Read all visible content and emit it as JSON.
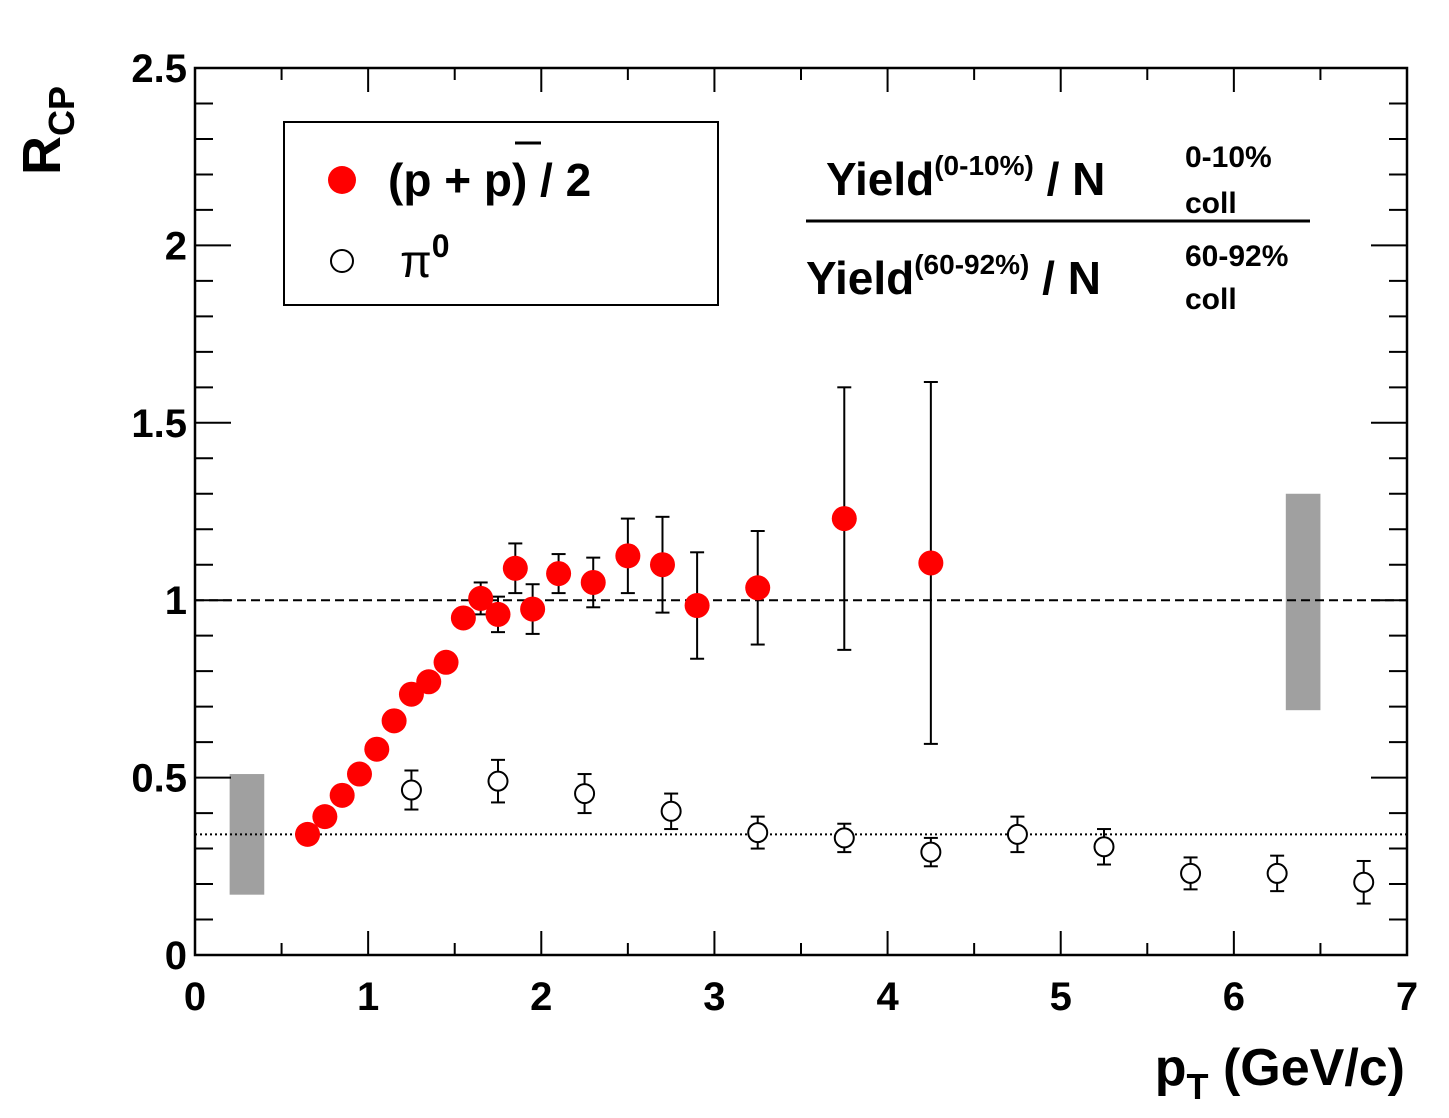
{
  "chart_data": {
    "type": "scatter",
    "xlabel": {
      "main": "p",
      "sub": "T",
      "unit": " (GeV/c)"
    },
    "ylabel": {
      "main": "R",
      "sub": "CP"
    },
    "xlim": [
      0,
      7
    ],
    "ylim": [
      0,
      2.5
    ],
    "x_ticks": [
      "0",
      "1",
      "2",
      "3",
      "4",
      "5",
      "6",
      "7"
    ],
    "y_ticks": [
      "0",
      "0.5",
      "1",
      "1.5",
      "2",
      "2.5"
    ],
    "grid": false,
    "legend_placement": "top-left",
    "legend": {
      "proton_label": {
        "open": "(p + ",
        "bar": "p",
        "close": ") / 2"
      },
      "pion_label": {
        "main": "π",
        "sup": "0"
      }
    },
    "formula": {
      "num": {
        "yield": "Yield",
        "cent": "(0-10%)",
        "slash": " / N",
        "sup": "0-10%",
        "sub": "coll"
      },
      "den": {
        "yield": "Yield",
        "cent": "(60-92%)",
        "slash": " / N",
        "sup": "60-92%",
        "sub": "coll"
      }
    },
    "reference_lines": [
      {
        "y": 1.0,
        "style": "dashed"
      },
      {
        "y": 0.34,
        "style": "dotted"
      }
    ],
    "systematic_bands": [
      {
        "x": [
          0.2,
          0.4
        ],
        "y": [
          0.17,
          0.51
        ]
      },
      {
        "x": [
          6.3,
          6.5
        ],
        "y": [
          0.69,
          1.3
        ]
      }
    ],
    "series": [
      {
        "name": "(p + p̄) / 2",
        "marker": "filled-circle",
        "color": "#ff0000",
        "points": [
          {
            "x": 0.65,
            "y": 0.34
          },
          {
            "x": 0.75,
            "y": 0.39
          },
          {
            "x": 0.85,
            "y": 0.45
          },
          {
            "x": 0.95,
            "y": 0.51
          },
          {
            "x": 1.05,
            "y": 0.58
          },
          {
            "x": 1.15,
            "y": 0.66
          },
          {
            "x": 1.25,
            "y": 0.735
          },
          {
            "x": 1.35,
            "y": 0.77
          },
          {
            "x": 1.45,
            "y": 0.825
          },
          {
            "x": 1.55,
            "y": 0.95
          },
          {
            "x": 1.65,
            "y": 1.005,
            "err": 0.045
          },
          {
            "x": 1.75,
            "y": 0.96,
            "err": 0.05
          },
          {
            "x": 1.85,
            "y": 1.09,
            "err": 0.07
          },
          {
            "x": 1.95,
            "y": 0.975,
            "err": 0.07
          },
          {
            "x": 2.1,
            "y": 1.075,
            "err": 0.055
          },
          {
            "x": 2.3,
            "y": 1.05,
            "err": 0.07
          },
          {
            "x": 2.5,
            "y": 1.125,
            "err": 0.105
          },
          {
            "x": 2.7,
            "y": 1.1,
            "err": 0.135
          },
          {
            "x": 2.9,
            "y": 0.985,
            "err": 0.15
          },
          {
            "x": 3.25,
            "y": 1.035,
            "err": 0.16
          },
          {
            "x": 3.75,
            "y": 1.23,
            "err": 0.37
          },
          {
            "x": 4.25,
            "y": 1.105,
            "err": 0.51
          }
        ]
      },
      {
        "name": "π0",
        "marker": "open-circle",
        "color": "#000000",
        "points": [
          {
            "x": 1.25,
            "y": 0.465,
            "err": 0.055
          },
          {
            "x": 1.75,
            "y": 0.49,
            "err": 0.06
          },
          {
            "x": 2.25,
            "y": 0.455,
            "err": 0.055
          },
          {
            "x": 2.75,
            "y": 0.405,
            "err": 0.05
          },
          {
            "x": 3.25,
            "y": 0.345,
            "err": 0.045
          },
          {
            "x": 3.75,
            "y": 0.33,
            "err": 0.04
          },
          {
            "x": 4.25,
            "y": 0.29,
            "err": 0.04
          },
          {
            "x": 4.75,
            "y": 0.34,
            "err": 0.05
          },
          {
            "x": 5.25,
            "y": 0.305,
            "err": 0.05
          },
          {
            "x": 5.75,
            "y": 0.23,
            "err": 0.045
          },
          {
            "x": 6.25,
            "y": 0.23,
            "err": 0.05
          },
          {
            "x": 6.75,
            "y": 0.205,
            "err": 0.06
          }
        ]
      }
    ]
  }
}
